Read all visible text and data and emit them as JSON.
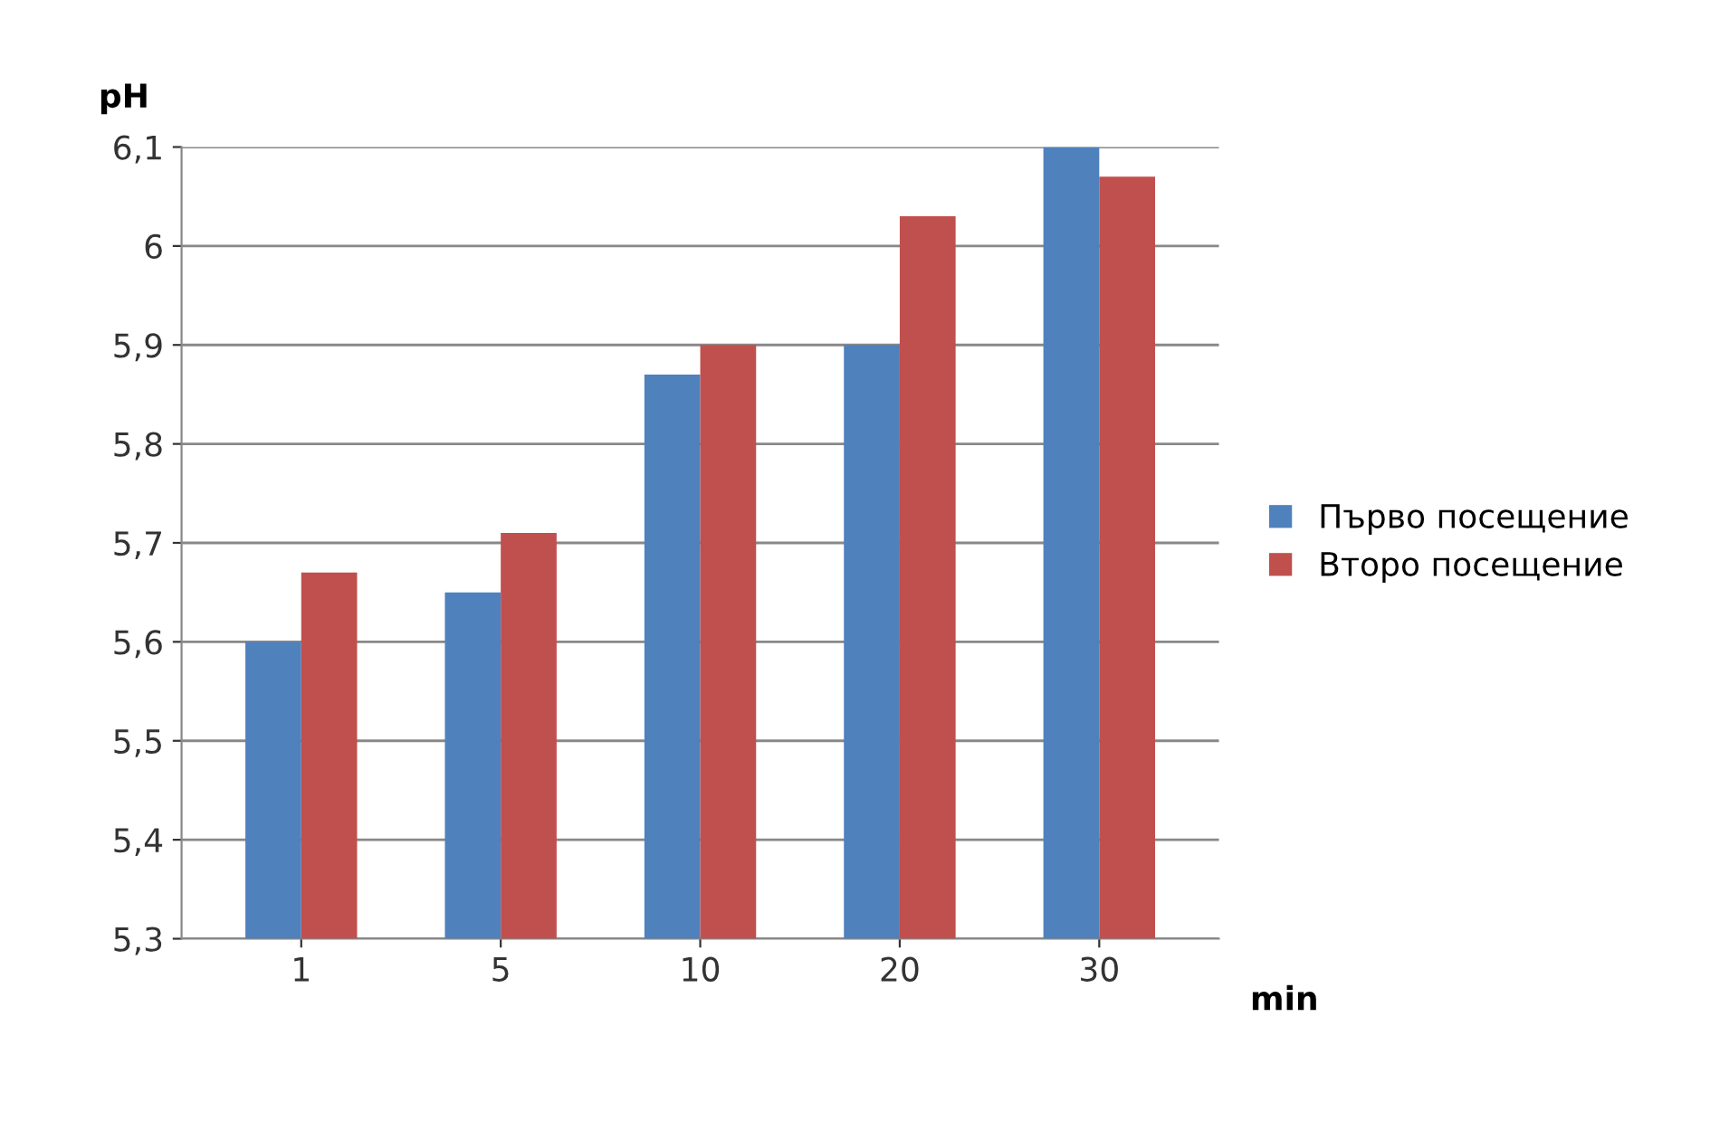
{
  "chart_data": {
    "type": "bar",
    "xlabel": "min",
    "ylabel": "pH",
    "categories": [
      "1",
      "5",
      "10",
      "20",
      "30"
    ],
    "series": [
      {
        "name": "Първо посещение",
        "color": "#4f81bd",
        "values": [
          5.6,
          5.65,
          5.87,
          5.9,
          6.1
        ]
      },
      {
        "name": "Второ посещение",
        "color": "#c0504d",
        "values": [
          5.67,
          5.71,
          5.9,
          6.03,
          6.07
        ]
      }
    ],
    "ylim": [
      5.3,
      6.1
    ],
    "yticks": [
      {
        "value": 5.3,
        "label": "5,3"
      },
      {
        "value": 5.4,
        "label": "5,4"
      },
      {
        "value": 5.5,
        "label": "5,5"
      },
      {
        "value": 5.6,
        "label": "5,6"
      },
      {
        "value": 5.7,
        "label": "5,7"
      },
      {
        "value": 5.8,
        "label": "5,8"
      },
      {
        "value": 5.9,
        "label": "5,9"
      },
      {
        "value": 6.0,
        "label": "6"
      },
      {
        "value": 6.1,
        "label": "6,1"
      }
    ],
    "grid": "y",
    "legend": "right"
  }
}
